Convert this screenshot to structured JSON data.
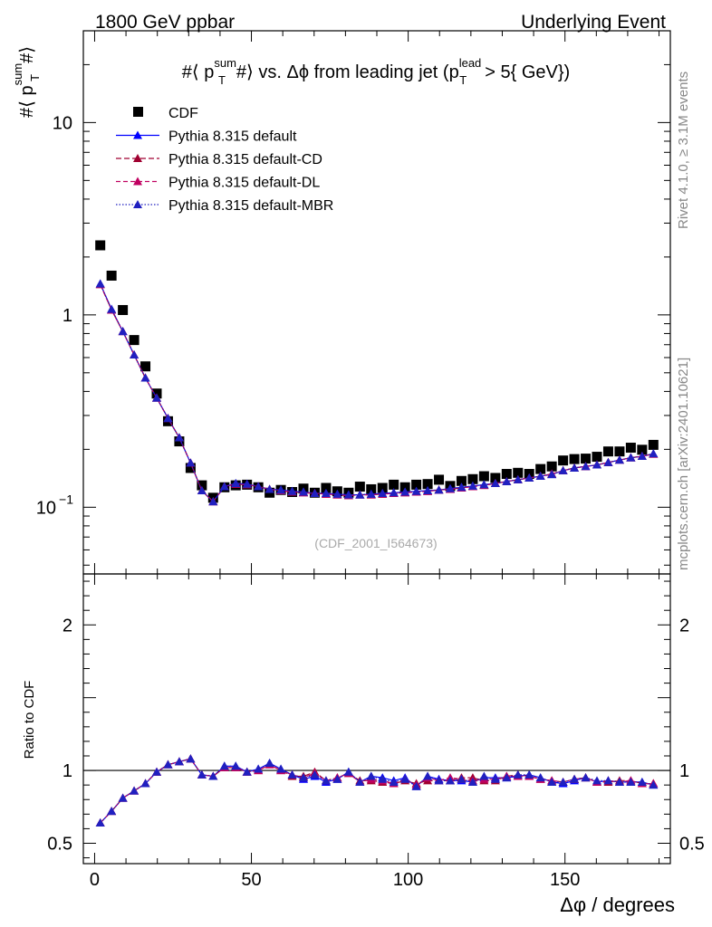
{
  "header": {
    "left": "1800 GeV ppbar",
    "right": "Underlying Event"
  },
  "side_labels": {
    "rivet": "Rivet 4.1.0, ≥ 3.1M events",
    "mcplots": "mcplots.cern.ch [arXiv:2401.10621]"
  },
  "chart_data": {
    "type": "line",
    "title": "#⟨ p_T^sum # ⟩ vs. Δφ from leading jet (p_T^lead > 5 GeV)",
    "watermark": "(CDF_2001_I564673)",
    "xlabel": "Δφ / degrees",
    "ylabel": "#⟨ p_T^sum # ⟩",
    "ratio_ylabel": "Ratio to CDF",
    "xlim": [
      -3.6,
      183.6
    ],
    "ylim": [
      0.045,
      30
    ],
    "ratio_ylim": [
      0.36,
      2.35
    ],
    "yscale": "log",
    "x_ticks": [
      0,
      50,
      100,
      150
    ],
    "y_ticks": [
      {
        "value": 0.1,
        "base": "10",
        "exp": "−1"
      },
      {
        "value": 1,
        "base": "1",
        "exp": ""
      },
      {
        "value": 10,
        "base": "10",
        "exp": ""
      }
    ],
    "ratio_ticks": [
      {
        "value": 0.5,
        "label": "0.5"
      },
      {
        "value": 1,
        "label": "1"
      },
      {
        "value": 2,
        "label": "2"
      }
    ],
    "x": [
      1.8,
      5.4,
      9,
      12.6,
      16.2,
      19.8,
      23.4,
      27,
      30.6,
      34.2,
      37.8,
      41.4,
      45,
      48.6,
      52.2,
      55.8,
      59.4,
      63,
      66.6,
      70.2,
      73.8,
      77.4,
      81,
      84.6,
      88.2,
      91.8,
      95.4,
      99,
      102.6,
      106.2,
      109.8,
      113.4,
      117,
      120.6,
      124.2,
      127.8,
      131.4,
      135,
      138.6,
      142.2,
      145.8,
      149.4,
      153,
      156.6,
      160.2,
      163.8,
      167.4,
      171,
      174.6,
      178.2
    ],
    "data": {
      "name": "CDF",
      "values": [
        2.3,
        1.6,
        1.06,
        0.74,
        0.54,
        0.39,
        0.28,
        0.22,
        0.16,
        0.13,
        0.112,
        0.127,
        0.13,
        0.131,
        0.127,
        0.119,
        0.123,
        0.12,
        0.125,
        0.119,
        0.126,
        0.121,
        0.119,
        0.128,
        0.124,
        0.126,
        0.131,
        0.127,
        0.131,
        0.132,
        0.139,
        0.129,
        0.137,
        0.14,
        0.145,
        0.142,
        0.149,
        0.151,
        0.149,
        0.158,
        0.163,
        0.175,
        0.178,
        0.179,
        0.183,
        0.195,
        0.195,
        0.204,
        0.199,
        0.211
      ]
    },
    "series": [
      {
        "name": "Pythia 8.315 default",
        "color": "#0000ff",
        "dash": "solid",
        "values": [
          1.45,
          1.07,
          0.82,
          0.62,
          0.47,
          0.37,
          0.29,
          0.23,
          0.17,
          0.122,
          0.107,
          0.128,
          0.133,
          0.132,
          0.128,
          0.124,
          0.123,
          0.121,
          0.12,
          0.118,
          0.118,
          0.117,
          0.116,
          0.116,
          0.117,
          0.118,
          0.119,
          0.12,
          0.121,
          0.122,
          0.123,
          0.125,
          0.127,
          0.129,
          0.131,
          0.133,
          0.136,
          0.139,
          0.142,
          0.145,
          0.148,
          0.155,
          0.16,
          0.163,
          0.166,
          0.171,
          0.176,
          0.181,
          0.184,
          0.19
        ],
        "ratio": [
          0.64,
          0.72,
          0.81,
          0.86,
          0.91,
          0.99,
          1.04,
          1.06,
          1.08,
          0.97,
          0.96,
          1.03,
          1.03,
          0.99,
          1.01,
          1.05,
          1.01,
          0.97,
          0.94,
          0.96,
          0.92,
          0.94,
          0.99,
          0.92,
          0.96,
          0.95,
          0.93,
          0.95,
          0.89,
          0.96,
          0.94,
          0.93,
          0.93,
          0.92,
          0.95,
          0.95,
          0.95,
          0.96,
          0.97,
          0.95,
          0.92,
          0.91,
          0.93,
          0.95,
          0.92,
          0.93,
          0.92,
          0.92,
          0.92,
          0.9
        ]
      },
      {
        "name": "Pythia 8.315 default-CD",
        "color": "#a00030",
        "dash": "6,3",
        "values": [
          1.44,
          1.06,
          0.82,
          0.62,
          0.47,
          0.37,
          0.29,
          0.23,
          0.17,
          0.122,
          0.107,
          0.128,
          0.132,
          0.131,
          0.128,
          0.124,
          0.122,
          0.12,
          0.119,
          0.118,
          0.117,
          0.116,
          0.115,
          0.116,
          0.116,
          0.117,
          0.118,
          0.119,
          0.12,
          0.121,
          0.123,
          0.124,
          0.126,
          0.128,
          0.13,
          0.133,
          0.136,
          0.139,
          0.142,
          0.145,
          0.149,
          0.155,
          0.16,
          0.163,
          0.166,
          0.171,
          0.176,
          0.181,
          0.184,
          0.189
        ],
        "ratio": [
          0.64,
          0.72,
          0.81,
          0.86,
          0.91,
          0.99,
          1.04,
          1.06,
          1.08,
          0.97,
          0.96,
          1.02,
          1.02,
          0.99,
          1.0,
          1.04,
          1.0,
          0.96,
          0.96,
          0.99,
          0.93,
          0.95,
          0.98,
          0.93,
          0.93,
          0.92,
          0.91,
          0.93,
          0.91,
          0.93,
          0.93,
          0.93,
          0.95,
          0.95,
          0.93,
          0.93,
          0.96,
          0.97,
          0.96,
          0.94,
          0.93,
          0.92,
          0.94,
          0.95,
          0.92,
          0.92,
          0.93,
          0.93,
          0.91,
          0.91
        ]
      },
      {
        "name": "Pythia 8.315 default-DL",
        "color": "#c00060",
        "dash": "5,3",
        "values": [
          1.44,
          1.06,
          0.82,
          0.62,
          0.47,
          0.37,
          0.29,
          0.23,
          0.17,
          0.122,
          0.107,
          0.128,
          0.132,
          0.131,
          0.128,
          0.124,
          0.122,
          0.12,
          0.119,
          0.118,
          0.117,
          0.116,
          0.115,
          0.116,
          0.116,
          0.117,
          0.118,
          0.119,
          0.12,
          0.121,
          0.123,
          0.124,
          0.126,
          0.128,
          0.13,
          0.133,
          0.136,
          0.139,
          0.142,
          0.145,
          0.149,
          0.155,
          0.16,
          0.163,
          0.166,
          0.171,
          0.176,
          0.181,
          0.184,
          0.189
        ],
        "ratio": [
          0.64,
          0.72,
          0.81,
          0.86,
          0.91,
          0.99,
          1.04,
          1.06,
          1.08,
          0.97,
          0.96,
          1.02,
          1.02,
          0.99,
          1.0,
          1.04,
          1.0,
          0.97,
          0.95,
          0.98,
          0.93,
          0.95,
          0.98,
          0.92,
          0.94,
          0.93,
          0.91,
          0.94,
          0.9,
          0.95,
          0.93,
          0.95,
          0.94,
          0.93,
          0.94,
          0.94,
          0.96,
          0.96,
          0.96,
          0.94,
          0.93,
          0.92,
          0.94,
          0.95,
          0.92,
          0.93,
          0.92,
          0.93,
          0.91,
          0.91
        ]
      },
      {
        "name": "Pythia 8.315 default-MBR",
        "color": "#2020c0",
        "dash": "1.5,2",
        "values": [
          1.45,
          1.07,
          0.82,
          0.62,
          0.47,
          0.37,
          0.29,
          0.23,
          0.17,
          0.122,
          0.107,
          0.128,
          0.133,
          0.132,
          0.128,
          0.124,
          0.123,
          0.121,
          0.12,
          0.118,
          0.118,
          0.117,
          0.116,
          0.116,
          0.117,
          0.118,
          0.119,
          0.12,
          0.121,
          0.122,
          0.123,
          0.125,
          0.127,
          0.129,
          0.131,
          0.133,
          0.136,
          0.139,
          0.142,
          0.145,
          0.148,
          0.155,
          0.16,
          0.163,
          0.166,
          0.171,
          0.176,
          0.181,
          0.184,
          0.19
        ],
        "ratio": [
          0.64,
          0.72,
          0.81,
          0.86,
          0.91,
          0.99,
          1.04,
          1.06,
          1.08,
          0.97,
          0.96,
          1.03,
          1.03,
          0.99,
          1.01,
          1.05,
          1.01,
          0.97,
          0.95,
          0.97,
          0.93,
          0.94,
          0.99,
          0.92,
          0.96,
          0.94,
          0.92,
          0.94,
          0.89,
          0.96,
          0.93,
          0.93,
          0.94,
          0.92,
          0.96,
          0.94,
          0.95,
          0.97,
          0.97,
          0.95,
          0.92,
          0.92,
          0.94,
          0.95,
          0.93,
          0.93,
          0.92,
          0.92,
          0.92,
          0.9
        ]
      }
    ]
  }
}
